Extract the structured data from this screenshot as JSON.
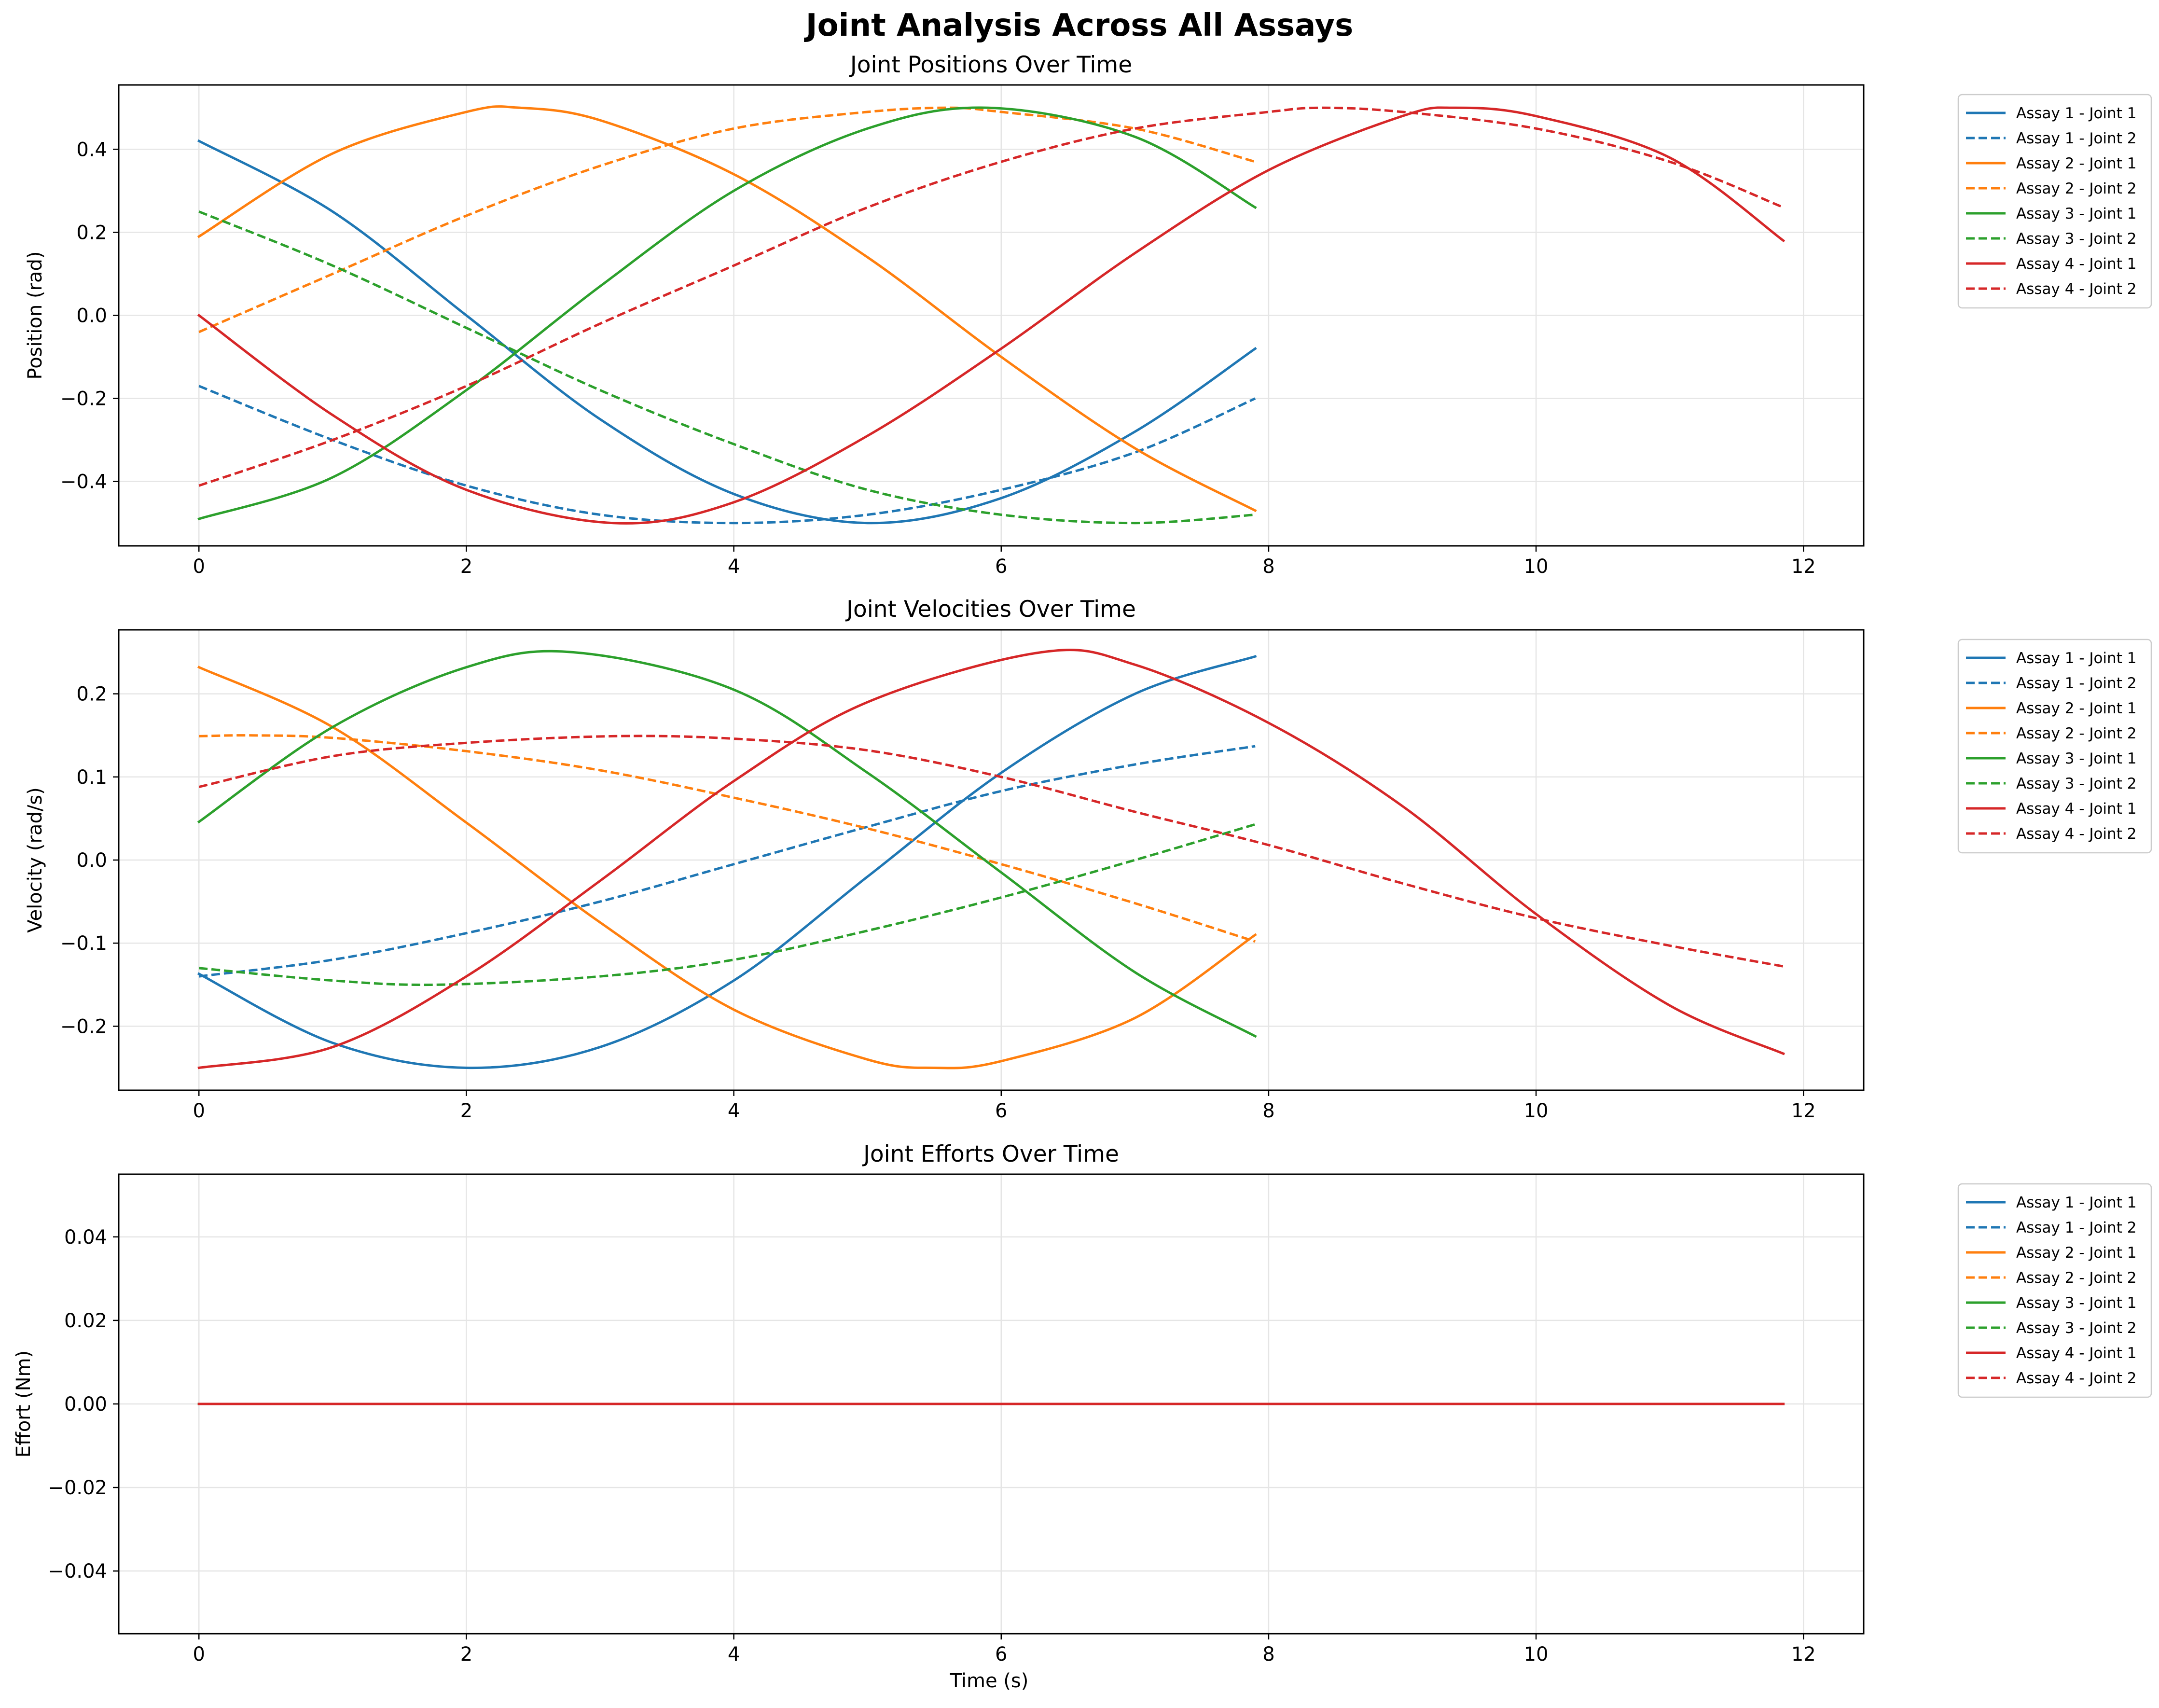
{
  "figure": {
    "title": "Joint Analysis Across All Assays",
    "xlabel": "Time (s)",
    "colors": {
      "assay_1": "#1f77b4",
      "assay_2": "#ff7f0e",
      "assay_3": "#2ca02c",
      "assay_4": "#d62728",
      "grid": "#e5e5e5",
      "axes": "#000000"
    }
  },
  "chart_data": [
    {
      "type": "line",
      "title": "Joint Positions Over Time",
      "xlabel": "",
      "ylabel": "Position (rad)",
      "xlim": [
        -0.6,
        12.45
      ],
      "ylim": [
        -0.555,
        0.555
      ],
      "xticks": [
        0,
        2,
        4,
        6,
        8,
        10,
        12
      ],
      "xtick_labels": [
        "0",
        "2",
        "4",
        "6",
        "8",
        "10",
        "12"
      ],
      "yticks": [
        -0.4,
        -0.2,
        0.0,
        0.2,
        0.4
      ],
      "ytick_labels": [
        "−0.4",
        "−0.2",
        "0.0",
        "0.2",
        "0.4"
      ],
      "grid": true,
      "legend_position": "outside-right",
      "series": [
        {
          "name": "Assay 1 - Joint 1",
          "color": "#1f77b4",
          "dash": "solid",
          "x": [
            0,
            1,
            2,
            3,
            4,
            5,
            6,
            7,
            7.9
          ],
          "y": [
            0.42,
            0.25,
            0.0,
            -0.25,
            -0.43,
            -0.5,
            -0.44,
            -0.28,
            -0.08
          ]
        },
        {
          "name": "Assay 1 - Joint 2",
          "color": "#1f77b4",
          "dash": "dashed",
          "x": [
            0,
            1,
            2,
            3,
            4,
            5,
            6,
            7,
            7.9
          ],
          "y": [
            -0.17,
            -0.3,
            -0.41,
            -0.48,
            -0.5,
            -0.48,
            -0.42,
            -0.33,
            -0.2
          ]
        },
        {
          "name": "Assay 2 - Joint 1",
          "color": "#ff7f0e",
          "dash": "solid",
          "x": [
            0,
            1,
            2,
            2.4,
            3,
            4,
            5,
            6,
            7,
            7.9
          ],
          "y": [
            0.19,
            0.39,
            0.49,
            0.5,
            0.47,
            0.34,
            0.14,
            -0.1,
            -0.32,
            -0.47
          ]
        },
        {
          "name": "Assay 2 - Joint 2",
          "color": "#ff7f0e",
          "dash": "dashed",
          "x": [
            0,
            1,
            2,
            3,
            4,
            5,
            5.6,
            6,
            7,
            7.9
          ],
          "y": [
            -0.04,
            0.1,
            0.24,
            0.36,
            0.45,
            0.49,
            0.5,
            0.49,
            0.45,
            0.37
          ]
        },
        {
          "name": "Assay 3 - Joint 1",
          "color": "#2ca02c",
          "dash": "solid",
          "x": [
            0,
            1,
            2,
            3,
            4,
            5,
            5.9,
            7,
            7.9
          ],
          "y": [
            -0.49,
            -0.39,
            -0.18,
            0.07,
            0.3,
            0.45,
            0.5,
            0.43,
            0.26
          ]
        },
        {
          "name": "Assay 3 - Joint 2",
          "color": "#2ca02c",
          "dash": "dashed",
          "x": [
            0,
            1,
            2,
            3,
            4,
            5,
            6,
            7,
            7.9
          ],
          "y": [
            0.25,
            0.12,
            -0.03,
            -0.18,
            -0.31,
            -0.42,
            -0.48,
            -0.5,
            -0.48
          ]
        },
        {
          "name": "Assay 4 - Joint 1",
          "color": "#d62728",
          "dash": "solid",
          "x": [
            0,
            1,
            2,
            3.1,
            4,
            5,
            6,
            7,
            8,
            9,
            9.4,
            10,
            11,
            11.85
          ],
          "y": [
            0.0,
            -0.24,
            -0.42,
            -0.5,
            -0.45,
            -0.29,
            -0.08,
            0.15,
            0.35,
            0.48,
            0.5,
            0.48,
            0.38,
            0.18
          ]
        },
        {
          "name": "Assay 4 - Joint 2",
          "color": "#d62728",
          "dash": "dashed",
          "x": [
            0,
            1,
            2,
            3,
            4,
            5,
            6,
            7,
            8,
            8.4,
            9,
            10,
            11,
            11.85
          ],
          "y": [
            -0.41,
            -0.3,
            -0.17,
            -0.02,
            0.12,
            0.26,
            0.37,
            0.45,
            0.49,
            0.5,
            0.49,
            0.45,
            0.37,
            0.26
          ]
        }
      ]
    },
    {
      "type": "line",
      "title": "Joint Velocities Over Time",
      "xlabel": "",
      "ylabel": "Velocity (rad/s)",
      "xlim": [
        -0.6,
        12.45
      ],
      "ylim": [
        -0.277,
        0.277
      ],
      "xticks": [
        0,
        2,
        4,
        6,
        8,
        10,
        12
      ],
      "xtick_labels": [
        "0",
        "2",
        "4",
        "6",
        "8",
        "10",
        "12"
      ],
      "yticks": [
        -0.2,
        -0.1,
        0.0,
        0.1,
        0.2
      ],
      "ytick_labels": [
        "−0.2",
        "−0.1",
        "0.0",
        "0.1",
        "0.2"
      ],
      "grid": true,
      "legend_position": "outside-right",
      "series": [
        {
          "name": "Assay 1 - Joint 1",
          "color": "#1f77b4",
          "dash": "solid",
          "x": [
            0,
            1,
            2,
            3,
            4,
            5,
            6,
            7,
            7.9
          ],
          "y": [
            -0.137,
            -0.22,
            -0.25,
            -0.225,
            -0.145,
            -0.02,
            0.105,
            0.2,
            0.245
          ]
        },
        {
          "name": "Assay 1 - Joint 2",
          "color": "#1f77b4",
          "dash": "dashed",
          "x": [
            0,
            1,
            2,
            3,
            4,
            5,
            6,
            7,
            7.9
          ],
          "y": [
            -0.14,
            -0.12,
            -0.088,
            -0.05,
            -0.005,
            0.04,
            0.083,
            0.115,
            0.137
          ]
        },
        {
          "name": "Assay 2 - Joint 1",
          "color": "#ff7f0e",
          "dash": "solid",
          "x": [
            0,
            1,
            2,
            3,
            4,
            5,
            5.5,
            6,
            7,
            7.9
          ],
          "y": [
            0.232,
            0.16,
            0.045,
            -0.075,
            -0.18,
            -0.24,
            -0.25,
            -0.242,
            -0.19,
            -0.09
          ]
        },
        {
          "name": "Assay 2 - Joint 2",
          "color": "#ff7f0e",
          "dash": "dashed",
          "x": [
            0,
            0.4,
            1,
            2,
            3,
            4,
            5,
            6,
            7,
            7.9
          ],
          "y": [
            0.149,
            0.15,
            0.147,
            0.131,
            0.108,
            0.075,
            0.038,
            -0.005,
            -0.052,
            -0.098
          ]
        },
        {
          "name": "Assay 3 - Joint 1",
          "color": "#2ca02c",
          "dash": "solid",
          "x": [
            0,
            1,
            2,
            2.8,
            4,
            5,
            6,
            7,
            7.9
          ],
          "y": [
            0.046,
            0.16,
            0.232,
            0.25,
            0.205,
            0.105,
            -0.015,
            -0.135,
            -0.212
          ]
        },
        {
          "name": "Assay 3 - Joint 2",
          "color": "#2ca02c",
          "dash": "dashed",
          "x": [
            0,
            1,
            1.8,
            3,
            4,
            5,
            6,
            7,
            7.9
          ],
          "y": [
            -0.13,
            -0.145,
            -0.15,
            -0.14,
            -0.12,
            -0.085,
            -0.045,
            0.0,
            0.043
          ]
        },
        {
          "name": "Assay 4 - Joint 1",
          "color": "#d62728",
          "dash": "solid",
          "x": [
            0,
            1,
            2,
            3,
            4,
            5,
            6.3,
            7,
            8,
            9,
            10,
            11,
            11.85
          ],
          "y": [
            -0.25,
            -0.225,
            -0.14,
            -0.025,
            0.095,
            0.19,
            0.25,
            0.235,
            0.165,
            0.065,
            -0.065,
            -0.175,
            -0.233
          ]
        },
        {
          "name": "Assay 4 - Joint 2",
          "color": "#d62728",
          "dash": "dashed",
          "x": [
            0,
            1,
            2,
            3.1,
            4,
            5,
            6,
            7,
            8,
            9,
            10,
            11,
            11.85
          ],
          "y": [
            0.088,
            0.125,
            0.141,
            0.149,
            0.146,
            0.132,
            0.1,
            0.058,
            0.018,
            -0.028,
            -0.07,
            -0.103,
            -0.128
          ]
        }
      ]
    },
    {
      "type": "line",
      "title": "Joint Efforts Over Time",
      "xlabel": "Time (s)",
      "ylabel": "Effort (Nm)",
      "xlim": [
        -0.6,
        12.45
      ],
      "ylim": [
        -0.055,
        0.055
      ],
      "xticks": [
        0,
        2,
        4,
        6,
        8,
        10,
        12
      ],
      "xtick_labels": [
        "0",
        "2",
        "4",
        "6",
        "8",
        "10",
        "12"
      ],
      "yticks": [
        -0.04,
        -0.02,
        0.0,
        0.02,
        0.04
      ],
      "ytick_labels": [
        "−0.04",
        "−0.02",
        "0.00",
        "0.02",
        "0.04"
      ],
      "grid": true,
      "legend_position": "outside-right",
      "series": [
        {
          "name": "Assay 1 - Joint 1",
          "color": "#1f77b4",
          "dash": "solid",
          "x": [
            0,
            7.9
          ],
          "y": [
            0,
            0
          ]
        },
        {
          "name": "Assay 1 - Joint 2",
          "color": "#1f77b4",
          "dash": "dashed",
          "x": [
            0,
            7.9
          ],
          "y": [
            0,
            0
          ]
        },
        {
          "name": "Assay 2 - Joint 1",
          "color": "#ff7f0e",
          "dash": "solid",
          "x": [
            0,
            7.9
          ],
          "y": [
            0,
            0
          ]
        },
        {
          "name": "Assay 2 - Joint 2",
          "color": "#ff7f0e",
          "dash": "dashed",
          "x": [
            0,
            7.9
          ],
          "y": [
            0,
            0
          ]
        },
        {
          "name": "Assay 3 - Joint 1",
          "color": "#2ca02c",
          "dash": "solid",
          "x": [
            0,
            7.9
          ],
          "y": [
            0,
            0
          ]
        },
        {
          "name": "Assay 3 - Joint 2",
          "color": "#2ca02c",
          "dash": "dashed",
          "x": [
            0,
            7.9
          ],
          "y": [
            0,
            0
          ]
        },
        {
          "name": "Assay 4 - Joint 1",
          "color": "#d62728",
          "dash": "solid",
          "x": [
            0,
            11.85
          ],
          "y": [
            0,
            0
          ]
        },
        {
          "name": "Assay 4 - Joint 2",
          "color": "#d62728",
          "dash": "dashed",
          "x": [
            0,
            11.85
          ],
          "y": [
            0,
            0
          ]
        }
      ]
    }
  ]
}
